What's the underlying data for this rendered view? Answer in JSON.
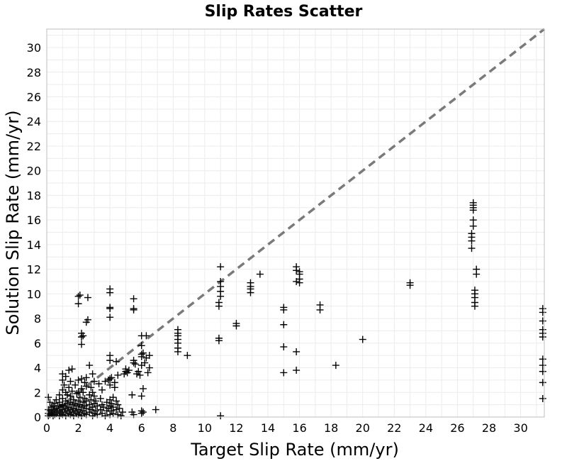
{
  "chart_data": {
    "type": "scatter",
    "title": "Slip Rates Scatter",
    "xlabel": "Target Slip Rate (mm/yr)",
    "ylabel": "Solution Slip Rate (mm/yr)",
    "xlim": [
      0,
      31.5
    ],
    "ylim": [
      0,
      31.5
    ],
    "xticks": [
      "0",
      "2",
      "4",
      "6",
      "8",
      "10",
      "12",
      "14",
      "16",
      "18",
      "20",
      "22",
      "24",
      "26",
      "28",
      "30"
    ],
    "yticks": [
      "0",
      "2",
      "4",
      "6",
      "8",
      "10",
      "12",
      "14",
      "16",
      "18",
      "20",
      "22",
      "24",
      "26",
      "28",
      "30"
    ],
    "grid": true,
    "marker": "plus",
    "marker_color": "#000000",
    "reference_line": {
      "style": "dashed",
      "color": "#7a7a7a",
      "from": [
        0,
        0
      ],
      "to": [
        31.5,
        31.5
      ]
    },
    "points": [
      [
        0.1,
        0.1
      ],
      [
        0.1,
        0.3
      ],
      [
        0.1,
        0.6
      ],
      [
        0.1,
        1.6
      ],
      [
        0.2,
        0.2
      ],
      [
        0.2,
        0.5
      ],
      [
        0.2,
        1.2
      ],
      [
        0.3,
        0.3
      ],
      [
        0.3,
        0.4
      ],
      [
        0.3,
        0.8
      ],
      [
        0.4,
        0.1
      ],
      [
        0.4,
        0.5
      ],
      [
        0.4,
        0.9
      ],
      [
        0.5,
        0.2
      ],
      [
        0.5,
        0.6
      ],
      [
        0.5,
        1.1
      ],
      [
        0.6,
        0.3
      ],
      [
        0.6,
        0.7
      ],
      [
        0.6,
        1.4
      ],
      [
        0.7,
        0.4
      ],
      [
        0.7,
        0.9
      ],
      [
        0.8,
        0.1
      ],
      [
        0.8,
        0.5
      ],
      [
        0.8,
        1.2
      ],
      [
        0.8,
        1.8
      ],
      [
        0.9,
        0.3
      ],
      [
        0.9,
        0.8
      ],
      [
        1.0,
        0.2
      ],
      [
        1.0,
        0.6
      ],
      [
        1.0,
        1.0
      ],
      [
        1.0,
        1.5
      ],
      [
        1.0,
        2.2
      ],
      [
        1.0,
        3.0
      ],
      [
        1.0,
        3.5
      ],
      [
        1.1,
        0.4
      ],
      [
        1.1,
        0.9
      ],
      [
        1.1,
        2.6
      ],
      [
        1.2,
        0.1
      ],
      [
        1.2,
        0.7
      ],
      [
        1.2,
        1.3
      ],
      [
        1.2,
        2.0
      ],
      [
        1.2,
        3.3
      ],
      [
        1.3,
        0.5
      ],
      [
        1.3,
        1.1
      ],
      [
        1.3,
        1.8
      ],
      [
        1.4,
        0.3
      ],
      [
        1.4,
        0.8
      ],
      [
        1.4,
        2.4
      ],
      [
        1.4,
        3.8
      ],
      [
        1.5,
        0.2
      ],
      [
        1.5,
        0.6
      ],
      [
        1.5,
        1.2
      ],
      [
        1.5,
        1.7
      ],
      [
        1.5,
        2.9
      ],
      [
        1.6,
        0.4
      ],
      [
        1.6,
        1.0
      ],
      [
        1.6,
        2.1
      ],
      [
        1.6,
        3.9
      ],
      [
        1.7,
        0.1
      ],
      [
        1.7,
        0.7
      ],
      [
        1.7,
        1.4
      ],
      [
        1.8,
        0.5
      ],
      [
        1.8,
        1.1
      ],
      [
        1.8,
        2.6
      ],
      [
        1.9,
        0.3
      ],
      [
        1.9,
        0.9
      ],
      [
        1.9,
        1.9
      ],
      [
        2.0,
        0.2
      ],
      [
        2.0,
        0.6
      ],
      [
        2.0,
        1.3
      ],
      [
        2.0,
        2.0
      ],
      [
        2.0,
        3.0
      ],
      [
        2.0,
        9.2
      ],
      [
        2.0,
        9.8
      ],
      [
        2.1,
        0.4
      ],
      [
        2.1,
        1.0
      ],
      [
        2.1,
        1.6
      ],
      [
        2.1,
        9.9
      ],
      [
        2.2,
        0.1
      ],
      [
        2.2,
        0.8
      ],
      [
        2.2,
        2.3
      ],
      [
        2.2,
        3.1
      ],
      [
        2.2,
        5.9
      ],
      [
        2.2,
        6.5
      ],
      [
        2.2,
        6.8
      ],
      [
        2.3,
        0.5
      ],
      [
        2.3,
        1.2
      ],
      [
        2.3,
        2.0
      ],
      [
        2.3,
        6.6
      ],
      [
        2.4,
        0.3
      ],
      [
        2.4,
        0.9
      ],
      [
        2.4,
        1.5
      ],
      [
        2.4,
        2.8
      ],
      [
        2.5,
        0.2
      ],
      [
        2.5,
        0.7
      ],
      [
        2.5,
        1.3
      ],
      [
        2.5,
        2.5
      ],
      [
        2.5,
        3.2
      ],
      [
        2.5,
        7.7
      ],
      [
        2.6,
        7.9
      ],
      [
        2.6,
        9.7
      ],
      [
        2.7,
        0.4
      ],
      [
        2.7,
        1.0
      ],
      [
        2.7,
        1.8
      ],
      [
        2.7,
        4.2
      ],
      [
        2.8,
        0.6
      ],
      [
        2.8,
        1.4
      ],
      [
        2.8,
        2.4
      ],
      [
        2.9,
        0.1
      ],
      [
        2.9,
        0.8
      ],
      [
        2.9,
        2.0
      ],
      [
        2.9,
        3.5
      ],
      [
        3.0,
        0.3
      ],
      [
        3.0,
        1.1
      ],
      [
        3.0,
        1.7
      ],
      [
        3.0,
        2.9
      ],
      [
        3.1,
        0.5
      ],
      [
        3.1,
        1.3
      ],
      [
        3.2,
        0.2
      ],
      [
        3.2,
        0.9
      ],
      [
        3.3,
        2.7
      ],
      [
        3.4,
        0.6
      ],
      [
        3.4,
        1.5
      ],
      [
        3.5,
        0.3
      ],
      [
        3.5,
        1.0
      ],
      [
        3.5,
        2.2
      ],
      [
        3.6,
        0.8
      ],
      [
        3.7,
        0.1
      ],
      [
        3.7,
        2.9
      ],
      [
        3.8,
        0.5
      ],
      [
        3.8,
        1.2
      ],
      [
        3.9,
        0.7
      ],
      [
        3.9,
        3.0
      ],
      [
        4.0,
        0.2
      ],
      [
        4.0,
        0.9
      ],
      [
        4.0,
        1.4
      ],
      [
        4.0,
        2.6
      ],
      [
        4.0,
        3.1
      ],
      [
        4.0,
        4.6
      ],
      [
        4.0,
        5.0
      ],
      [
        4.0,
        8.1
      ],
      [
        4.0,
        8.8
      ],
      [
        4.0,
        8.9
      ],
      [
        4.0,
        10.1
      ],
      [
        4.0,
        10.4
      ],
      [
        4.1,
        0.5
      ],
      [
        4.1,
        1.1
      ],
      [
        4.1,
        3.2
      ],
      [
        4.2,
        0.3
      ],
      [
        4.2,
        0.8
      ],
      [
        4.2,
        1.6
      ],
      [
        4.3,
        2.4
      ],
      [
        4.3,
        2.8
      ],
      [
        4.4,
        0.6
      ],
      [
        4.4,
        1.3
      ],
      [
        4.4,
        4.5
      ],
      [
        4.5,
        0.2
      ],
      [
        4.5,
        1.0
      ],
      [
        4.5,
        3.4
      ],
      [
        4.6,
        0.7
      ],
      [
        4.7,
        0.1
      ],
      [
        4.8,
        0.4
      ],
      [
        4.9,
        3.5
      ],
      [
        5.0,
        3.7
      ],
      [
        5.0,
        3.9
      ],
      [
        5.1,
        3.6
      ],
      [
        5.2,
        3.8
      ],
      [
        5.4,
        0.4
      ],
      [
        5.4,
        1.8
      ],
      [
        5.5,
        0.2
      ],
      [
        5.5,
        4.6
      ],
      [
        5.5,
        4.4
      ],
      [
        5.5,
        8.7
      ],
      [
        5.5,
        8.8
      ],
      [
        5.5,
        9.6
      ],
      [
        5.6,
        4.3
      ],
      [
        5.7,
        3.5
      ],
      [
        5.8,
        3.7
      ],
      [
        5.9,
        3.4
      ],
      [
        6.0,
        0.3
      ],
      [
        6.0,
        0.5
      ],
      [
        6.0,
        1.7
      ],
      [
        6.0,
        4.2
      ],
      [
        6.0,
        4.9
      ],
      [
        6.0,
        5.1
      ],
      [
        6.0,
        5.8
      ],
      [
        6.0,
        6.6
      ],
      [
        6.1,
        0.4
      ],
      [
        6.1,
        2.3
      ],
      [
        6.1,
        5.2
      ],
      [
        6.2,
        4.4
      ],
      [
        6.3,
        4.8
      ],
      [
        6.3,
        6.6
      ],
      [
        6.4,
        3.6
      ],
      [
        6.5,
        4.0
      ],
      [
        6.5,
        5.0
      ],
      [
        6.9,
        0.6
      ],
      [
        8.3,
        5.3
      ],
      [
        8.3,
        5.6
      ],
      [
        8.3,
        6.0
      ],
      [
        8.3,
        6.3
      ],
      [
        8.3,
        6.6
      ],
      [
        8.3,
        6.8
      ],
      [
        8.3,
        7.1
      ],
      [
        8.9,
        5.0
      ],
      [
        10.9,
        6.2
      ],
      [
        10.9,
        6.4
      ],
      [
        10.9,
        9.0
      ],
      [
        10.9,
        9.3
      ],
      [
        11.0,
        0.1
      ],
      [
        11.0,
        9.8
      ],
      [
        11.0,
        10.2
      ],
      [
        11.0,
        10.6
      ],
      [
        11.0,
        11.0
      ],
      [
        11.0,
        12.2
      ],
      [
        12.0,
        7.4
      ],
      [
        12.0,
        7.6
      ],
      [
        12.9,
        10.1
      ],
      [
        12.9,
        10.4
      ],
      [
        12.9,
        10.6
      ],
      [
        12.9,
        10.9
      ],
      [
        13.5,
        11.6
      ],
      [
        15.0,
        3.6
      ],
      [
        15.0,
        5.7
      ],
      [
        15.0,
        7.5
      ],
      [
        15.0,
        8.7
      ],
      [
        15.0,
        8.9
      ],
      [
        15.8,
        3.8
      ],
      [
        15.8,
        5.3
      ],
      [
        15.8,
        11.0
      ],
      [
        15.8,
        11.9
      ],
      [
        15.8,
        12.2
      ],
      [
        16.0,
        10.9
      ],
      [
        16.0,
        11.2
      ],
      [
        16.0,
        11.6
      ],
      [
        16.0,
        11.8
      ],
      [
        17.3,
        8.7
      ],
      [
        17.3,
        9.1
      ],
      [
        18.3,
        4.2
      ],
      [
        20.0,
        6.3
      ],
      [
        23.0,
        10.7
      ],
      [
        23.0,
        10.9
      ],
      [
        26.9,
        13.7
      ],
      [
        26.9,
        14.3
      ],
      [
        26.9,
        14.6
      ],
      [
        26.9,
        14.9
      ],
      [
        27.0,
        15.5
      ],
      [
        27.0,
        16.0
      ],
      [
        27.0,
        16.8
      ],
      [
        27.0,
        17.0
      ],
      [
        27.0,
        17.2
      ],
      [
        27.0,
        17.4
      ],
      [
        27.1,
        9.0
      ],
      [
        27.1,
        9.3
      ],
      [
        27.1,
        9.7
      ],
      [
        27.1,
        10.0
      ],
      [
        27.1,
        10.3
      ],
      [
        27.2,
        11.6
      ],
      [
        27.2,
        12.0
      ],
      [
        31.4,
        1.5
      ],
      [
        31.4,
        2.8
      ],
      [
        31.4,
        3.7
      ],
      [
        31.4,
        4.2
      ],
      [
        31.4,
        4.7
      ],
      [
        31.4,
        6.5
      ],
      [
        31.4,
        6.8
      ],
      [
        31.4,
        7.1
      ],
      [
        31.4,
        7.8
      ],
      [
        31.4,
        8.5
      ],
      [
        31.4,
        8.8
      ]
    ]
  }
}
